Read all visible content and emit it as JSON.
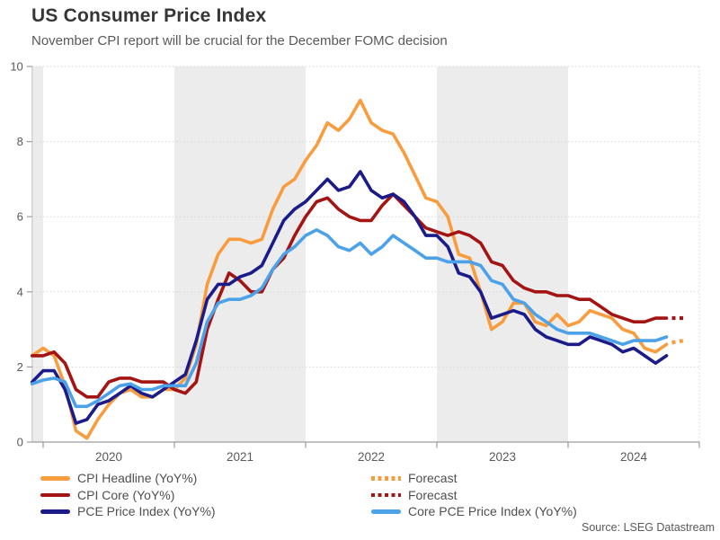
{
  "source": "Source: LSEG Datastream",
  "chart_data": {
    "type": "line",
    "title": "US Consumer Price Index",
    "subtitle": "November CPI report will be crucial for the December FOMC decision",
    "x_unit": "month",
    "x_start": "2019-12",
    "x_end": "2024-10",
    "x_tick_years": [
      "2020",
      "2021",
      "2022",
      "2023",
      "2024"
    ],
    "ylim": [
      0,
      10
    ],
    "y_ticks": [
      0,
      2,
      4,
      6,
      8,
      10
    ],
    "grid": "dotted horizontal gridlines",
    "shaded_year_bands": [
      "2019",
      "2021",
      "2023"
    ],
    "band_color": "#ECECEC",
    "axis_color": "#9C9C9C",
    "tick_label_color": "#595959",
    "series": [
      {
        "name": "CPI Headline (YoY%)",
        "color": "#F89C3E",
        "style": "solid",
        "values": [
          2.3,
          2.5,
          2.3,
          1.5,
          0.3,
          0.1,
          0.6,
          1.0,
          1.3,
          1.4,
          1.2,
          1.2,
          1.4,
          1.4,
          1.7,
          2.6,
          4.2,
          5.0,
          5.4,
          5.4,
          5.3,
          5.4,
          6.2,
          6.8,
          7.0,
          7.5,
          7.9,
          8.5,
          8.3,
          8.6,
          9.1,
          8.5,
          8.3,
          8.2,
          7.7,
          7.1,
          6.5,
          6.4,
          6.0,
          5.0,
          4.9,
          4.0,
          3.0,
          3.2,
          3.7,
          3.7,
          3.2,
          3.1,
          3.4,
          3.1,
          3.2,
          3.5,
          3.4,
          3.3,
          3.0,
          2.9,
          2.5,
          2.4,
          2.6
        ],
        "forecast": {
          "label": "Forecast",
          "month": "2024-11",
          "value": 2.7
        }
      },
      {
        "name": "CPI Core (YoY%)",
        "color": "#A31412",
        "style": "solid",
        "values": [
          2.3,
          2.3,
          2.4,
          2.1,
          1.4,
          1.2,
          1.2,
          1.6,
          1.7,
          1.7,
          1.6,
          1.6,
          1.6,
          1.4,
          1.3,
          1.6,
          3.0,
          3.8,
          4.5,
          4.3,
          4.0,
          4.0,
          4.6,
          4.9,
          5.5,
          6.0,
          6.4,
          6.5,
          6.2,
          6.0,
          5.9,
          5.9,
          6.3,
          6.6,
          6.3,
          6.0,
          5.7,
          5.6,
          5.5,
          5.6,
          5.5,
          5.3,
          4.8,
          4.7,
          4.3,
          4.1,
          4.0,
          4.0,
          3.9,
          3.9,
          3.8,
          3.8,
          3.6,
          3.4,
          3.3,
          3.2,
          3.2,
          3.3,
          3.3
        ],
        "forecast": {
          "label": "Forecast",
          "month": "2024-11",
          "value": 3.3
        }
      },
      {
        "name": "PCE Price Index (YoY%)",
        "color": "#1B1B8A",
        "style": "solid",
        "values": [
          1.6,
          1.9,
          1.9,
          1.4,
          0.5,
          0.6,
          1.0,
          1.1,
          1.3,
          1.5,
          1.3,
          1.2,
          1.4,
          1.6,
          1.8,
          2.7,
          3.8,
          4.2,
          4.2,
          4.4,
          4.5,
          4.7,
          5.3,
          5.9,
          6.2,
          6.4,
          6.7,
          7.0,
          6.7,
          6.8,
          7.2,
          6.7,
          6.5,
          6.6,
          6.4,
          6.0,
          5.5,
          5.5,
          5.2,
          4.5,
          4.4,
          4.0,
          3.3,
          3.4,
          3.5,
          3.4,
          3.0,
          2.8,
          2.7,
          2.6,
          2.6,
          2.8,
          2.7,
          2.6,
          2.4,
          2.5,
          2.3,
          2.1,
          2.3
        ]
      },
      {
        "name": "Core PCE Price Index (YoY%)",
        "color": "#4CA2E9",
        "style": "solid",
        "values": [
          1.55,
          1.65,
          1.7,
          1.6,
          0.95,
          0.95,
          1.1,
          1.3,
          1.5,
          1.55,
          1.4,
          1.4,
          1.5,
          1.5,
          1.5,
          2.1,
          3.2,
          3.7,
          3.8,
          3.8,
          3.9,
          4.1,
          4.6,
          5.0,
          5.2,
          5.5,
          5.65,
          5.5,
          5.2,
          5.1,
          5.3,
          5.0,
          5.2,
          5.5,
          5.3,
          5.1,
          4.9,
          4.9,
          4.8,
          4.8,
          4.8,
          4.7,
          4.3,
          4.2,
          3.8,
          3.7,
          3.4,
          3.2,
          3.0,
          2.9,
          2.9,
          2.9,
          2.8,
          2.7,
          2.6,
          2.7,
          2.7,
          2.7,
          2.8
        ]
      }
    ],
    "legend": {
      "position": "bottom",
      "columns": [
        [
          {
            "label": "CPI Headline (YoY%)",
            "swatch": "solid",
            "color": "#F89C3E"
          },
          {
            "label": "CPI Core (YoY%)",
            "swatch": "solid",
            "color": "#A31412"
          },
          {
            "label": "PCE Price Index (YoY%)",
            "swatch": "solid",
            "color": "#1B1B8A"
          }
        ],
        [
          {
            "label": "Forecast",
            "swatch": "dotted",
            "color": "#F89C3E"
          },
          {
            "label": "Forecast",
            "swatch": "dotted",
            "color": "#A31412"
          },
          {
            "label": "Core PCE Price Index (YoY%)",
            "swatch": "solid",
            "color": "#4CA2E9"
          }
        ]
      ]
    }
  }
}
